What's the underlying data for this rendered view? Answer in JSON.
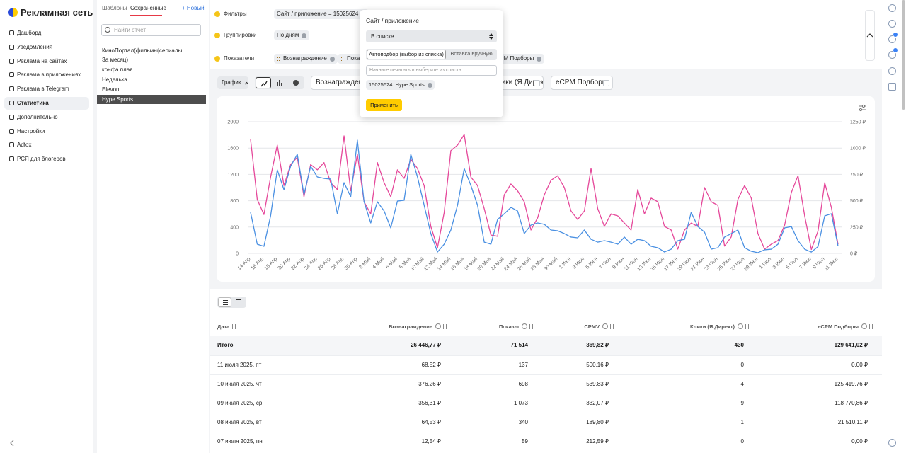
{
  "sidebar": {
    "logo": "Рекламная сеть",
    "menu": [
      "Дашборд",
      "Уведомления",
      "Реклама на сайтах",
      "Реклама в приложениях",
      "Реклама в Telegram",
      "Статистика",
      "Дополнительно",
      "Настройки",
      "Adfox",
      "РСЯ для блогеров"
    ]
  },
  "reports": {
    "tabs": [
      "Шаблоны",
      "Сохраненные"
    ],
    "new": "+ Новый",
    "search_placeholder": "Найти отчет",
    "items": [
      "КиноПортал(фильмы|сериалы",
      "За месяц)",
      "конфа плая",
      "Неделька",
      "Elevon",
      "Hype Sports"
    ]
  },
  "filters": {
    "rows": [
      {
        "label": "Фильтры",
        "chips": [
          "Сайт / приложение = 15025624"
        ]
      },
      {
        "label": "Группировки",
        "chips": [
          "По дням"
        ]
      },
      {
        "label": "Показатели",
        "chips": [
          "Вознаграждение",
          "Показы",
          "eCPM Подборы"
        ]
      }
    ]
  },
  "toolbar": {
    "view": "График",
    "metrics": [
      "Вознаграждение",
      "Клики (Я.Директ)",
      "eCPM Подборы"
    ]
  },
  "popover": {
    "title": "Сайт / приложение",
    "operator": "В списке",
    "tabs": [
      "Автоподбор (выбор из списка)",
      "Вставка вручную"
    ],
    "input_placeholder": "Начните печатать и выберите из списка",
    "selected": [
      "15025624: Hype Sports"
    ],
    "apply": "Применить"
  },
  "chart_data": {
    "type": "line",
    "categories": [
      "14 Апр",
      null,
      "16 Апр",
      null,
      "18 Апр",
      null,
      "20 Апр",
      null,
      "22 Апр",
      null,
      "24 Апр",
      null,
      "26 Апр",
      null,
      "28 Апр",
      null,
      "30 Апр",
      null,
      "2 Май",
      null,
      "4 Май",
      null,
      "6 Май",
      null,
      "8 Май",
      null,
      "10 Май",
      null,
      "12 Май",
      null,
      "14 Май",
      null,
      "16 Май",
      null,
      "18 Май",
      null,
      "20 Май",
      null,
      "22 Май",
      null,
      "24 Май",
      null,
      "26 Май",
      null,
      "28 Май",
      null,
      "30 Май",
      null,
      "1 Июн",
      null,
      "3 Июн",
      null,
      "5 Июн",
      null,
      "7 Июн",
      null,
      "9 Июн",
      null,
      "11 Июн",
      null,
      "13 Июн",
      null,
      "15 Июн",
      null,
      "17 Июн",
      null,
      "19 Июн",
      null,
      "21 Июн",
      null,
      "23 Июн",
      null,
      "25 Июн",
      null,
      "27 Июн",
      null,
      "29 Июн",
      null,
      "1 Июл",
      null,
      "3 Июл",
      null,
      "5 Июл",
      null,
      "7 Июл",
      null,
      "9 Июл",
      null,
      "11 Июл"
    ],
    "series": [
      {
        "color": "#e5489a",
        "values": [
          1730,
          820,
          590,
          1160,
          1645,
          1030,
          1350,
          1460,
          860,
          1350,
          1270,
          1380,
          1075,
          970,
          1785,
          950,
          1505,
          785,
          600,
          1380,
          1075,
          860,
          1270,
          1140,
          1430,
          1290,
          1030,
          410,
          86,
          620,
          1560,
          1645,
          1805,
          1160,
          1030,
          680,
          280,
          260,
          890,
          1055,
          950,
          785,
          355,
          540,
          890,
          1110,
          1180,
          1000,
          645,
          515,
          645,
          1290,
          680,
          410,
          600,
          570,
          460,
          355,
          970,
          600,
          840,
          785,
          410,
          355,
          65,
          355,
          460,
          410,
          1000,
          785,
          730,
          110,
          250,
          820,
          1030,
          840,
          300,
          65,
          140,
          195,
          430,
          925,
          1180,
          570,
          59,
          340,
          1073,
          698,
          137
        ]
      },
      {
        "color": "#4a90e2",
        "axis": "y2",
        "values": [
          390,
          87,
          67,
          356,
          793,
          605,
          827,
          941,
          558,
          827,
          726,
          712,
          706,
          376,
          672,
          538,
          1075,
          490,
          289,
          490,
          403,
          242,
          497,
          504,
          941,
          726,
          457,
          188,
          13,
          87,
          222,
          457,
          806,
          645,
          457,
          107,
          87,
          323,
          376,
          437,
          403,
          188,
          269,
          289,
          276,
          222,
          215,
          188,
          155,
          148,
          222,
          134,
          107,
          121,
          107,
          87,
          155,
          87,
          134,
          121,
          67,
          54,
          13,
          40,
          121,
          134,
          390,
          255,
          202,
          40,
          54,
          155,
          188,
          222,
          54,
          20,
          7,
          34,
          40,
          87,
          242,
          255,
          121,
          40,
          12.54,
          64.53,
          356.31,
          376.26,
          68.52
        ]
      }
    ],
    "ylim": [
      0,
      2000
    ],
    "yticks": [
      0,
      400,
      800,
      1200,
      1600,
      2000
    ],
    "y2lim": [
      0,
      1250
    ],
    "y2ticks": [
      {
        "value": 0,
        "label": "0 ₽"
      },
      {
        "value": 250,
        "label": "250 ₽"
      },
      {
        "value": 500,
        "label": "500 ₽"
      },
      {
        "value": 750,
        "label": "750 ₽"
      },
      {
        "value": 1000,
        "label": "1000 ₽"
      },
      {
        "value": 1250,
        "label": "1250 ₽"
      }
    ],
    "grid": true
  },
  "table": {
    "columns": [
      "Дата",
      "Вознаграждение",
      "Показы",
      "CPMV",
      "Клики (Я.Директ)",
      "eCPM Подборы"
    ],
    "total": [
      "Итого",
      "26 446,77 ₽",
      "71 514",
      "369,82 ₽",
      "430",
      "129 641,02 ₽"
    ],
    "rows": [
      [
        "11 июля 2025, пт",
        "68,52 ₽",
        "137",
        "500,16 ₽",
        "0",
        "0,00 ₽"
      ],
      [
        "10 июля 2025, чт",
        "376,26 ₽",
        "698",
        "539,83 ₽",
        "4",
        "125 419,76 ₽"
      ],
      [
        "09 июля 2025, ср",
        "356,31 ₽",
        "1 073",
        "332,07 ₽",
        "9",
        "118 770,86 ₽"
      ],
      [
        "08 июля 2025, вт",
        "64,53 ₽",
        "340",
        "189,80 ₽",
        "1",
        "21 510,11 ₽"
      ],
      [
        "07 июля 2025, пн",
        "12,54 ₽",
        "59",
        "212,59 ₽",
        "0",
        "0,00 ₽"
      ]
    ]
  }
}
